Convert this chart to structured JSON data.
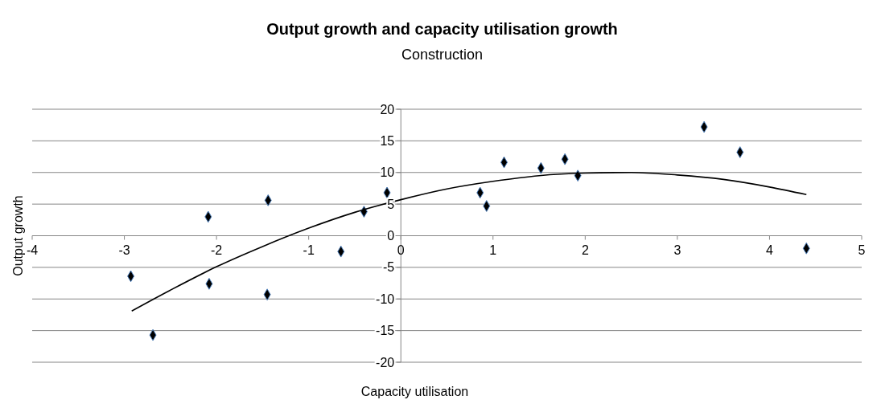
{
  "chart_data": {
    "type": "scatter",
    "title": "Output growth and capacity utilisation growth",
    "subtitle": "Construction",
    "xlabel": "Capacity utilisation",
    "ylabel": "Output growth",
    "xlim": [
      -4,
      5
    ],
    "ylim": [
      -20,
      20
    ],
    "xticks": [
      -4,
      -3,
      -2,
      -1,
      0,
      1,
      2,
      3,
      4,
      5
    ],
    "yticks": [
      -20,
      -15,
      -10,
      -5,
      0,
      5,
      10,
      15,
      20
    ],
    "grid": "y",
    "marker": "diamond",
    "series": [
      {
        "color": "#000000",
        "x": [
          -2.93,
          -2.69,
          -2.09,
          -2.08,
          -1.44,
          -1.45,
          -0.65,
          -0.4,
          -0.15,
          0.86,
          0.93,
          1.12,
          1.52,
          1.78,
          1.92,
          3.29,
          3.68,
          4.4
        ],
        "values": [
          -6.4,
          -15.7,
          3,
          -7.6,
          5.6,
          -9.3,
          -2.5,
          3.8,
          6.8,
          6.8,
          4.7,
          11.6,
          10.7,
          12.1,
          9.5,
          17.2,
          13.2,
          -2
        ]
      },
      {
        "type": "line",
        "color": "#000000",
        "marker": "none",
        "x": [
          -2.92,
          -2.5,
          -2,
          -1.5,
          -1,
          -0.5,
          0,
          0.5,
          1,
          1.5,
          2,
          2.5,
          3,
          3.5,
          4,
          4.4
        ],
        "values": [
          -11.9,
          -8.6,
          -4.9,
          -1.7,
          1.2,
          3.7,
          5.7,
          7.4,
          8.6,
          9.5,
          9.9,
          10,
          9.6,
          8.9,
          7.7,
          6.5
        ]
      }
    ]
  }
}
